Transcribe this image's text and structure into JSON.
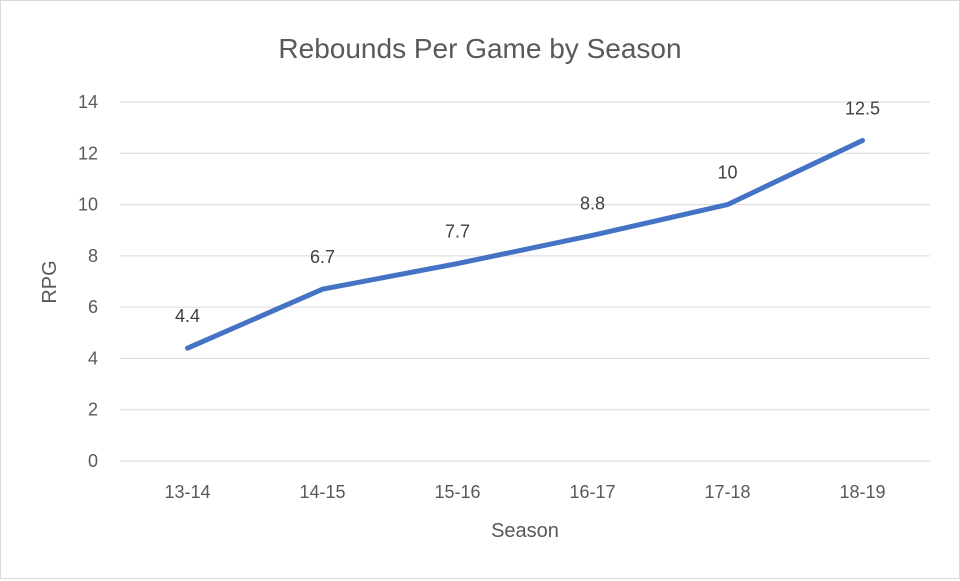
{
  "chart_data": {
    "type": "line",
    "title": "Rebounds Per Game by Season",
    "xlabel": "Season",
    "ylabel": "RPG",
    "categories": [
      "13-14",
      "14-15",
      "15-16",
      "16-17",
      "17-18",
      "18-19"
    ],
    "series": [
      {
        "values": [
          4.4,
          6.7,
          7.7,
          8.8,
          10,
          12.5
        ],
        "color": "#4472c4"
      }
    ],
    "data_labels": [
      "4.4",
      "6.7",
      "7.7",
      "8.8",
      "10",
      "12.5"
    ],
    "ylim": [
      0,
      14
    ],
    "yticks": [
      0,
      2,
      4,
      6,
      8,
      10,
      12,
      14
    ],
    "grid": true,
    "legend": "none"
  },
  "colors": {
    "line": "#4472c4",
    "gridline": "#d9d9d9",
    "text": "#595959"
  }
}
